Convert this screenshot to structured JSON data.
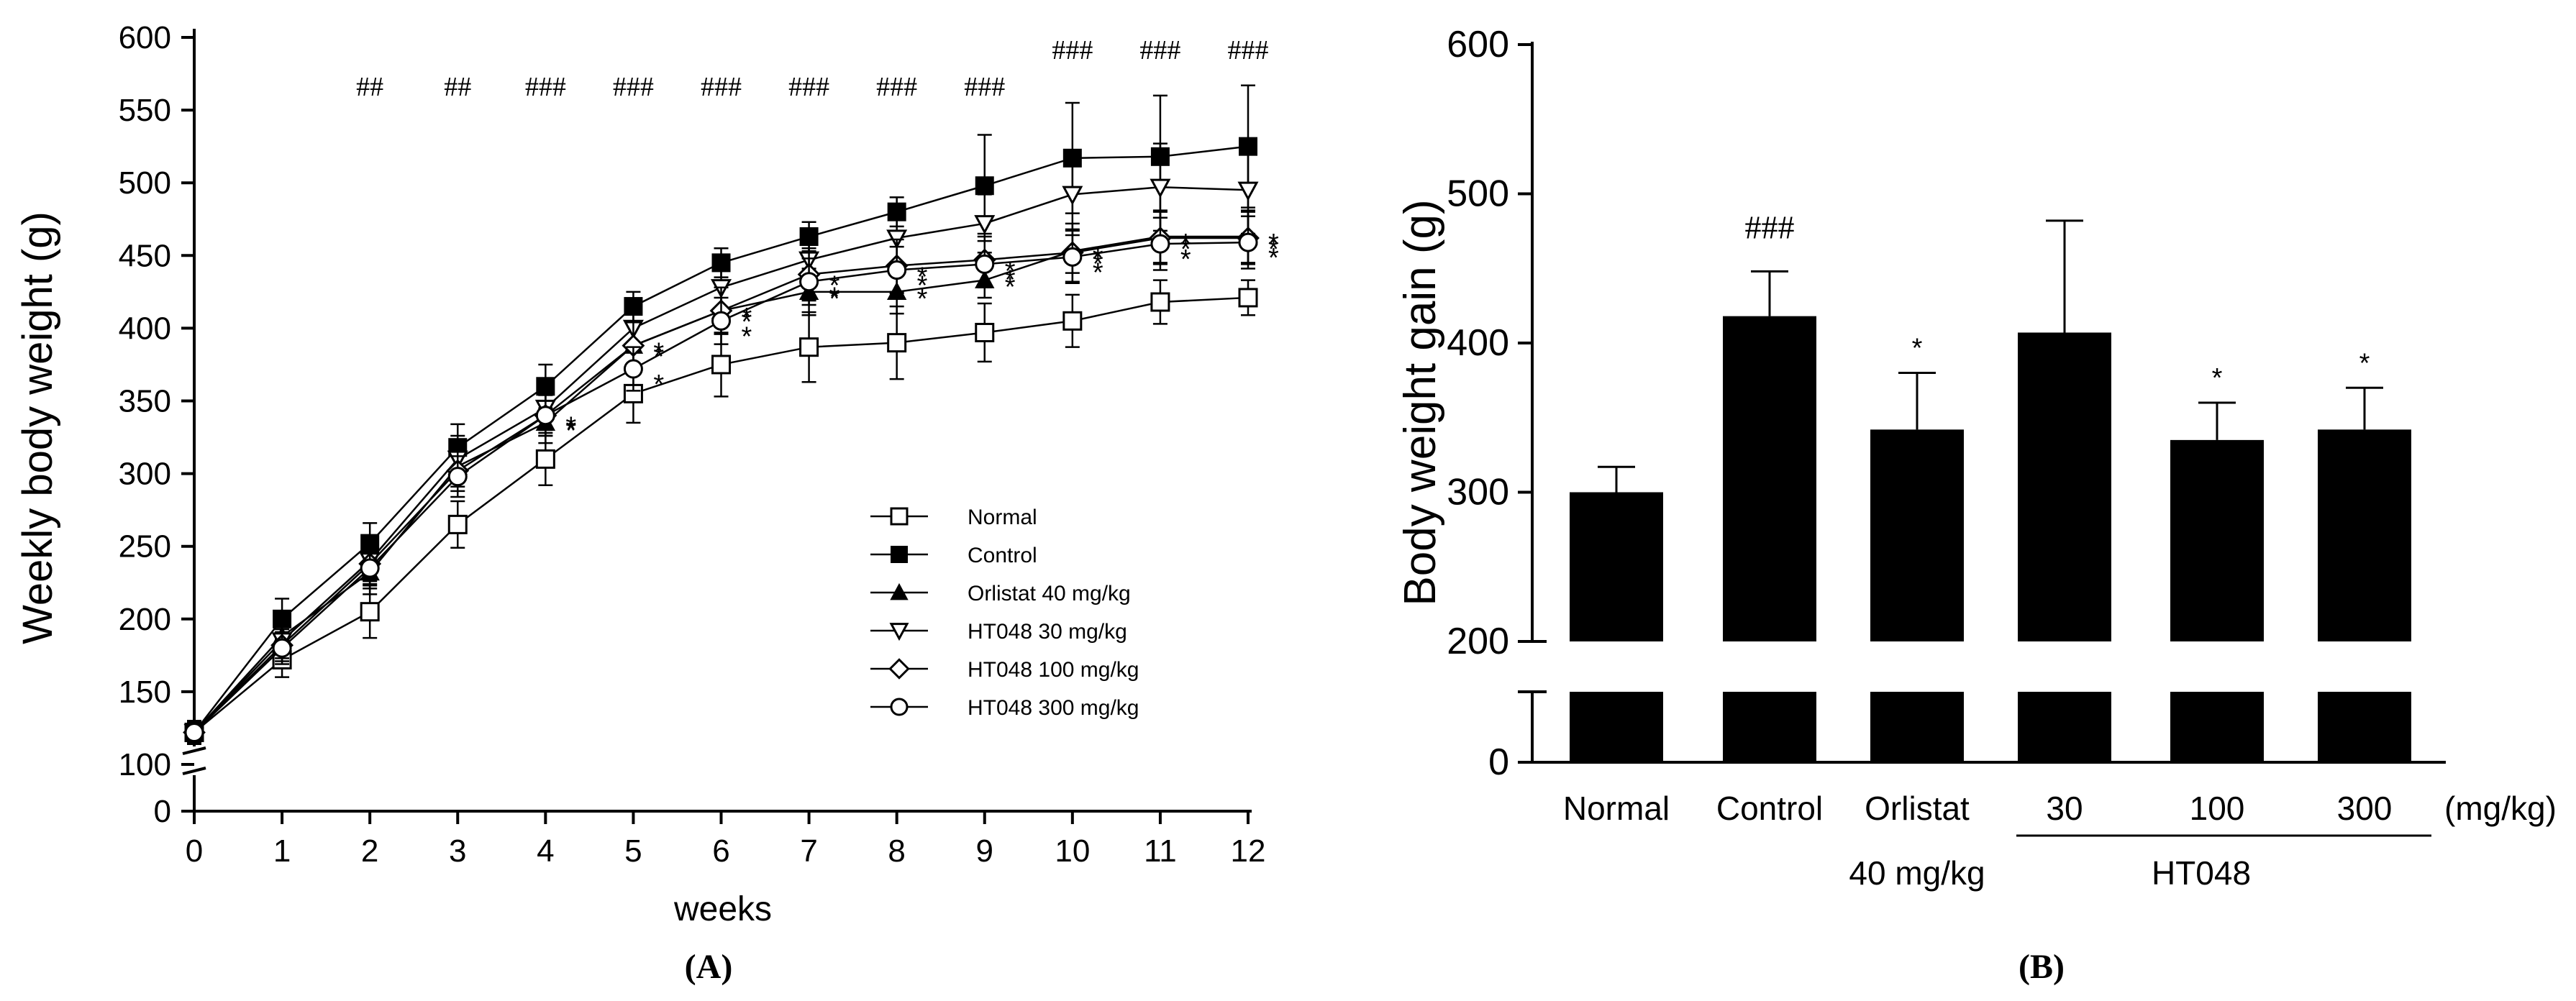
{
  "chart_data": [
    {
      "type": "line",
      "panel_label": "(A)",
      "xlabel": "weeks",
      "ylabel": "Weekly body weight (g)",
      "x": [
        0,
        1,
        2,
        3,
        4,
        5,
        6,
        7,
        8,
        9,
        10,
        11,
        12
      ],
      "x_tick_labels": [
        "0",
        "1",
        "2",
        "3",
        "4",
        "5",
        "6",
        "7",
        "8",
        "9",
        "10",
        "11",
        "12"
      ],
      "y_tick_labels": [
        "0",
        "100",
        "150",
        "200",
        "250",
        "300",
        "350",
        "400",
        "450",
        "500",
        "550",
        "600"
      ],
      "ylim": [
        100,
        600
      ],
      "y_axis_break": "between 0 and 100",
      "series": [
        {
          "name": "Normal",
          "marker": "open-square",
          "values": [
            122,
            172,
            205,
            265,
            310,
            355,
            375,
            387,
            390,
            397,
            405,
            418,
            421
          ],
          "errors": [
            8,
            12,
            18,
            16,
            18,
            20,
            22,
            24,
            25,
            20,
            18,
            15,
            12
          ]
        },
        {
          "name": "Control",
          "marker": "filled-square",
          "values": [
            122,
            200,
            252,
            318,
            360,
            415,
            445,
            463,
            480,
            498,
            517,
            518,
            525
          ],
          "errors": [
            8,
            14,
            14,
            16,
            15,
            10,
            10,
            10,
            10,
            35,
            38,
            42,
            42
          ]
        },
        {
          "name": "Orlistat 40 mg/kg",
          "marker": "filled-triangle",
          "values": [
            122,
            188,
            232,
            305,
            335,
            388,
            412,
            425,
            425,
            433,
            453,
            463,
            463
          ],
          "errors": [
            7,
            11,
            15,
            14,
            14,
            16,
            16,
            16,
            15,
            12,
            15,
            18,
            18
          ]
        },
        {
          "name": "HT048 30 mg/kg",
          "marker": "open-triangle-down",
          "values": [
            122,
            185,
            240,
            310,
            345,
            400,
            428,
            447,
            462,
            472,
            492,
            497,
            495
          ],
          "errors": [
            7,
            12,
            14,
            16,
            15,
            15,
            16,
            18,
            18,
            20,
            28,
            30,
            30
          ]
        },
        {
          "name": "HT048 100 mg/kg",
          "marker": "open-diamond",
          "values": [
            122,
            182,
            238,
            302,
            340,
            388,
            412,
            437,
            443,
            447,
            452,
            462,
            462
          ],
          "errors": [
            7,
            11,
            14,
            14,
            14,
            16,
            16,
            18,
            18,
            18,
            20,
            18,
            18
          ]
        },
        {
          "name": "HT048 300 mg/kg",
          "marker": "open-circle",
          "values": [
            122,
            180,
            235,
            298,
            340,
            372,
            405,
            432,
            440,
            444,
            449,
            458,
            459
          ],
          "errors": [
            7,
            11,
            14,
            14,
            14,
            15,
            16,
            16,
            16,
            16,
            18,
            18,
            18
          ]
        }
      ],
      "annotations": [
        {
          "x": 2,
          "text": "##"
        },
        {
          "x": 3,
          "text": "##"
        },
        {
          "x": 4,
          "text": "###"
        },
        {
          "x": 5,
          "text": "###"
        },
        {
          "x": 6,
          "text": "###"
        },
        {
          "x": 7,
          "text": "###"
        },
        {
          "x": 8,
          "text": "###"
        },
        {
          "x": 9,
          "text": "###"
        },
        {
          "x": 10,
          "text": "###"
        },
        {
          "x": 11,
          "text": "###"
        },
        {
          "x": 12,
          "text": "###"
        }
      ],
      "significance_marker": "*",
      "legend_position": "right-center"
    },
    {
      "type": "bar",
      "panel_label": "(B)",
      "ylabel": "Body weight gain (g)",
      "categories": [
        "Normal",
        "Control",
        "Orlistat",
        "30",
        "100",
        "300"
      ],
      "category_sublabels": [
        "",
        "",
        "40 mg/kg",
        "",
        "",
        ""
      ],
      "group_label": "HT048",
      "unit_label": "(mg/kg)",
      "values": [
        300,
        418,
        342,
        407,
        335,
        342
      ],
      "errors": [
        17,
        30,
        38,
        75,
        25,
        28
      ],
      "annotations": [
        "",
        "###",
        "*",
        "",
        "*",
        "*"
      ],
      "y_tick_labels": [
        "0",
        "200",
        "300",
        "400",
        "500",
        "600"
      ],
      "ylim": [
        200,
        600
      ],
      "y_axis_break": "between 0 and 200"
    }
  ]
}
